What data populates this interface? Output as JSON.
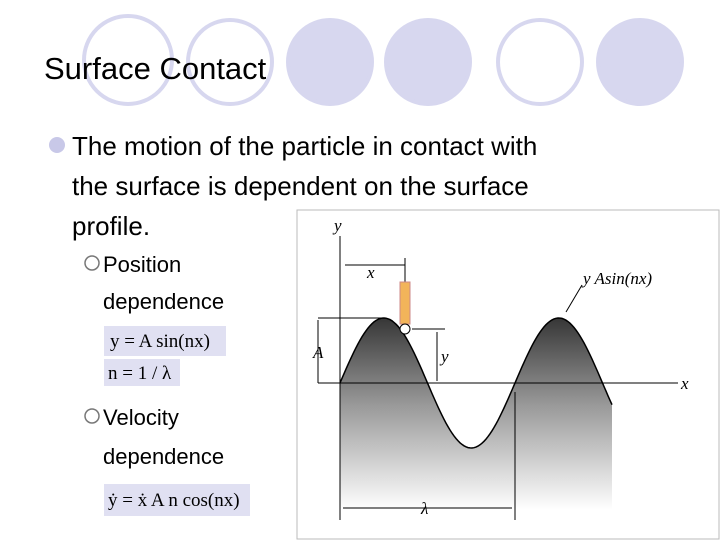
{
  "title": "Surface Contact",
  "bullet": {
    "lines": [
      "The motion of the particle in contact with",
      "the surface is dependent on the surface",
      "profile."
    ]
  },
  "sub_bullets": [
    {
      "lines": [
        "Position",
        "dependence"
      ],
      "equations": [
        "y = A sin(nx)",
        "n = 1 / λ"
      ]
    },
    {
      "lines": [
        "Velocity",
        "dependence"
      ],
      "equations": [
        "ẏ = ẋ A n cos(nx)"
      ]
    }
  ],
  "figure": {
    "labels": {
      "y_axis": "y",
      "x_offset": "x",
      "curve": "y  Asin(nx)",
      "amplitude": "A",
      "height": "y",
      "x_axis": "x",
      "wavelength": "λ"
    }
  }
}
